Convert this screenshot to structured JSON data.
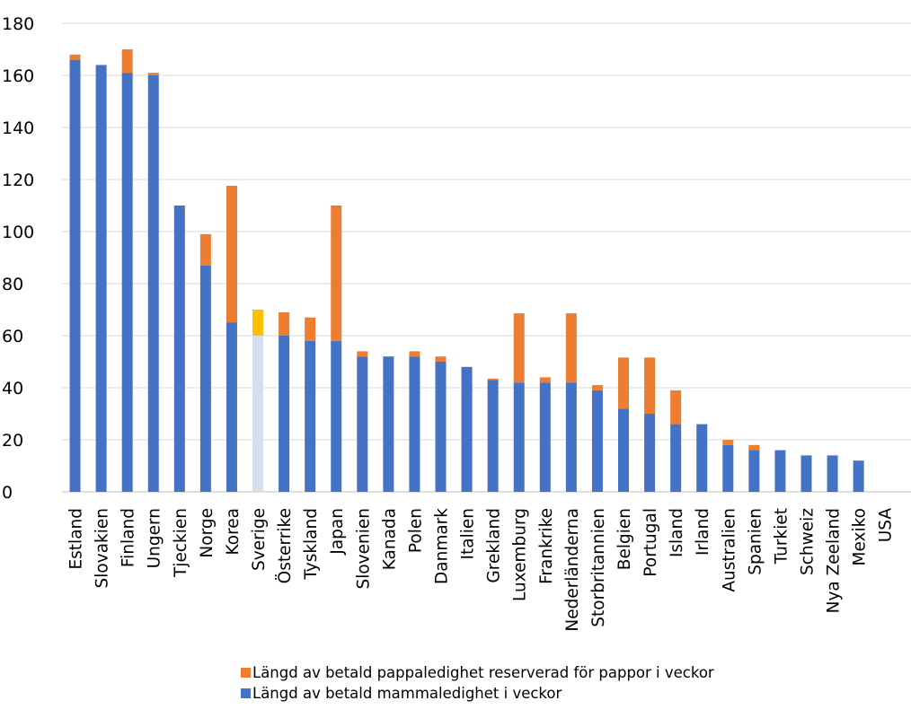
{
  "chart_data": {
    "type": "bar",
    "stacked": true,
    "categories": [
      "Estland",
      "Slovakien",
      "Finland",
      "Ungern",
      "Tjeckien",
      "Norge",
      "Korea",
      "Sverige",
      "Österrike",
      "Tyskland",
      "Japan",
      "Slovenien",
      "Kanada",
      "Polen",
      "Danmark",
      "Italien",
      "Grekland",
      "Luxemburg",
      "Frankrike",
      "Nederländerna",
      "Storbritannien",
      "Belgien",
      "Portugal",
      "Island",
      "Irland",
      "Australien",
      "Spanien",
      "Turkiet",
      "Schweiz",
      "Nya Zeeland",
      "Mexiko",
      "USA"
    ],
    "series": [
      {
        "name": "Längd av betald mammaledighet i veckor",
        "color": "#4472C4",
        "values": [
          166,
          164,
          161,
          160,
          110,
          87,
          65,
          60,
          60,
          58,
          58,
          52,
          52,
          52,
          50,
          48,
          43,
          42,
          42,
          42,
          39,
          32,
          30,
          26,
          26,
          18,
          16,
          16,
          14,
          14,
          12,
          0
        ]
      },
      {
        "name": "Längd av betald pappaledighet reserverad för pappor i veckor",
        "color": "#ED7D31",
        "values": [
          2,
          0,
          9,
          1,
          0,
          12,
          52.6,
          10,
          9,
          9,
          52,
          2,
          0,
          2,
          2,
          0,
          0.5,
          26.6,
          2,
          26.6,
          2,
          19.6,
          21.6,
          13,
          0,
          2,
          2,
          0,
          0,
          0,
          0,
          0
        ]
      }
    ],
    "highlight": {
      "category": "Sverige",
      "colors": [
        "#D6DFEF",
        "#FFC000"
      ]
    },
    "ylim": [
      0,
      180
    ],
    "yticks": [
      0,
      20,
      40,
      60,
      80,
      100,
      120,
      140,
      160,
      180
    ],
    "grid": true,
    "legend_position": "bottom"
  }
}
